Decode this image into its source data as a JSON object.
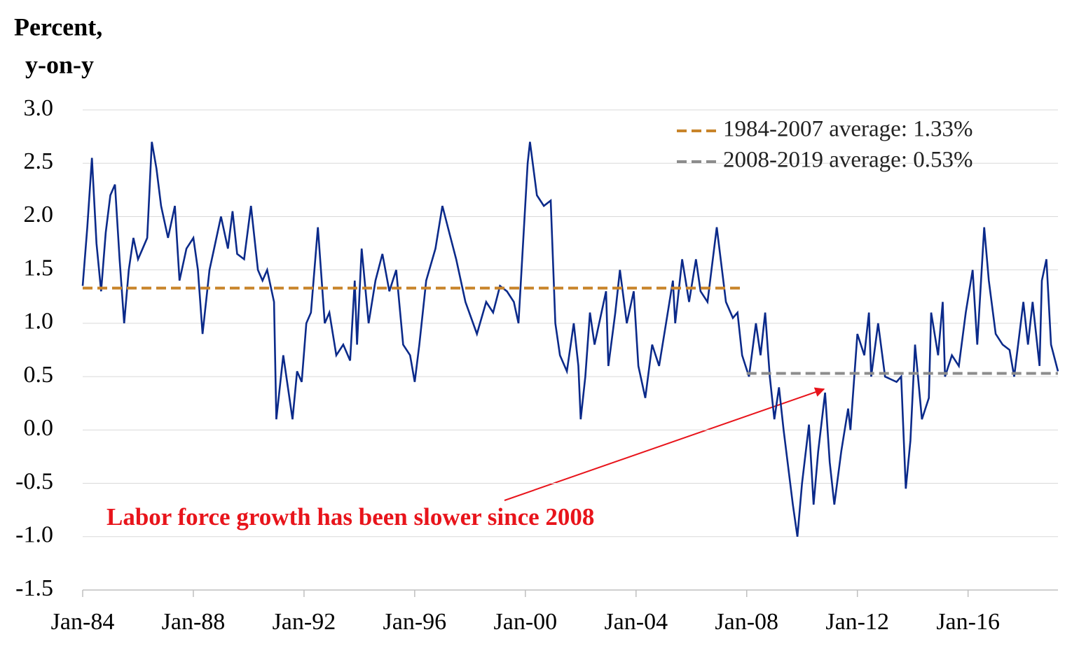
{
  "chart_data": {
    "type": "line",
    "y_label": [
      "Percent,",
      "y-on-y"
    ],
    "annotation": "Labor force growth has been slower since 2008",
    "x": [
      "Jan-84",
      "Mar-84",
      "May-84",
      "Jul-84",
      "Sep-84",
      "Nov-84",
      "Jan-85",
      "Mar-85",
      "May-85",
      "Jul-85",
      "Sep-85",
      "Nov-85",
      "Jan-86",
      "Mar-86",
      "May-86",
      "Jul-86",
      "Sep-86",
      "Nov-86",
      "Feb-87",
      "May-87",
      "Jul-87",
      "Oct-87",
      "Jan-88",
      "Mar-88",
      "May-88",
      "Aug-88",
      "Oct-88",
      "Jan-89",
      "Apr-89",
      "Jun-89",
      "Aug-89",
      "Nov-89",
      "Feb-90",
      "May-90",
      "Jul-90",
      "Sep-90",
      "Dec-90",
      "Jan-91",
      "Apr-91",
      "Aug-91",
      "Oct-91",
      "Dec-91",
      "Feb-92",
      "Apr-92",
      "Jul-92",
      "Oct-92",
      "Dec-92",
      "Mar-93",
      "Jun-93",
      "Sep-93",
      "Nov-93",
      "Dec-93",
      "Feb-94",
      "May-94",
      "Aug-94",
      "Nov-94",
      "Feb-95",
      "May-95",
      "Aug-95",
      "Nov-95",
      "Jan-96",
      "Mar-96",
      "Jun-96",
      "Oct-96",
      "Jan-97",
      "Apr-97",
      "Jul-97",
      "Nov-97",
      "Apr-98",
      "Aug-98",
      "Nov-98",
      "Feb-99",
      "May-99",
      "Aug-99",
      "Oct-99",
      "Feb-00",
      "Mar-00",
      "Jun-00",
      "Sep-00",
      "Dec-00",
      "Feb-01",
      "Apr-01",
      "Jul-01",
      "Oct-01",
      "Dec-01",
      "Jan-02",
      "Mar-02",
      "May-02",
      "Jul-02",
      "Dec-02",
      "Jan-03",
      "Apr-03",
      "Jun-03",
      "Sep-03",
      "Dec-03",
      "Feb-04",
      "May-04",
      "Aug-04",
      "Nov-04",
      "Feb-05",
      "May-05",
      "Jun-05",
      "Sep-05",
      "Dec-05",
      "Mar-06",
      "May-06",
      "Aug-06",
      "Dec-06",
      "Apr-07",
      "Jul-07",
      "Sep-07",
      "Nov-07",
      "Feb-08",
      "May-08",
      "Jul-08",
      "Sep-08",
      "Nov-08",
      "Jan-09",
      "Mar-09",
      "May-09",
      "Sep-09",
      "Nov-09",
      "Jan-10",
      "Apr-10",
      "Jun-10",
      "Aug-10",
      "Nov-10",
      "Jan-11",
      "Mar-11",
      "Jun-11",
      "Sep-11",
      "Oct-11",
      "Jan-12",
      "Apr-12",
      "Jun-12",
      "Jul-12",
      "Oct-12",
      "Jan-13",
      "Jun-13",
      "Aug-13",
      "Oct-13",
      "Dec-13",
      "Feb-14",
      "May-14",
      "Aug-14",
      "Sep-14",
      "Dec-14",
      "Feb-15",
      "Mar-15",
      "Jun-15",
      "Sep-15",
      "Dec-15",
      "Mar-16",
      "May-16",
      "Aug-16",
      "Oct-16",
      "Jan-17",
      "Apr-17",
      "Jul-17",
      "Sep-17",
      "Jan-18",
      "Mar-18",
      "May-18",
      "Aug-18",
      "Sep-18",
      "Nov-18",
      "Jan-19",
      "Apr-19"
    ],
    "series": [
      {
        "color": "#0b2a8a",
        "values": [
          1.35,
          1.9,
          2.55,
          1.75,
          1.3,
          1.85,
          2.2,
          2.3,
          1.6,
          1.0,
          1.5,
          1.8,
          1.6,
          1.7,
          1.8,
          2.7,
          2.45,
          2.1,
          1.8,
          2.1,
          1.4,
          1.7,
          1.8,
          1.5,
          0.9,
          1.5,
          1.7,
          2.0,
          1.7,
          2.05,
          1.65,
          1.6,
          2.1,
          1.5,
          1.4,
          1.5,
          1.2,
          0.1,
          0.7,
          0.1,
          0.55,
          0.45,
          1.0,
          1.1,
          1.9,
          1.0,
          1.1,
          0.7,
          0.8,
          0.65,
          1.4,
          0.8,
          1.7,
          1.0,
          1.4,
          1.65,
          1.3,
          1.5,
          0.8,
          0.7,
          0.45,
          0.8,
          1.4,
          1.7,
          2.1,
          1.85,
          1.6,
          1.2,
          0.9,
          1.2,
          1.1,
          1.35,
          1.3,
          1.2,
          1.0,
          2.5,
          2.7,
          2.2,
          2.1,
          2.15,
          1.0,
          0.7,
          0.55,
          1.0,
          0.6,
          0.1,
          0.5,
          1.1,
          0.8,
          1.3,
          0.6,
          1.1,
          1.5,
          1.0,
          1.3,
          0.6,
          0.3,
          0.8,
          0.6,
          1.0,
          1.4,
          1.0,
          1.6,
          1.2,
          1.6,
          1.3,
          1.2,
          1.9,
          1.2,
          1.05,
          1.1,
          0.7,
          0.5,
          1.0,
          0.7,
          1.1,
          0.5,
          0.1,
          0.4,
          0.0,
          -0.7,
          -1.0,
          -0.5,
          0.05,
          -0.7,
          -0.2,
          0.35,
          -0.3,
          -0.7,
          -0.2,
          0.2,
          0.0,
          0.9,
          0.7,
          1.1,
          0.5,
          1.0,
          0.5,
          0.45,
          0.5,
          -0.55,
          -0.1,
          0.8,
          0.1,
          0.3,
          1.1,
          0.7,
          1.2,
          0.5,
          0.7,
          0.6,
          1.1,
          1.5,
          0.8,
          1.9,
          1.4,
          0.9,
          0.8,
          0.75,
          0.5,
          1.2,
          0.8,
          1.2,
          0.6,
          1.4,
          1.6,
          0.8,
          0.55
        ]
      },
      {
        "name": "1984-2007 average: 1.33%",
        "color": "#c8842a",
        "dashed": true,
        "x": [
          "Jan-84",
          "Dec-07"
        ],
        "values": [
          1.33,
          1.33
        ]
      },
      {
        "name": "2008-2019 average: 0.53%",
        "color": "#8c8c8c",
        "dashed": true,
        "x": [
          "Jan-08",
          "Apr-19"
        ],
        "values": [
          0.53,
          0.53
        ]
      }
    ],
    "xlim": [
      "Jan-84",
      "Apr-19"
    ],
    "xticks": [
      "Jan-84",
      "Jan-88",
      "Jan-92",
      "Jan-96",
      "Jan-00",
      "Jan-04",
      "Jan-08",
      "Jan-12",
      "Jan-16"
    ],
    "ylim": [
      -1.5,
      3
    ],
    "yticks": [
      -1.5,
      {
        "value": -1,
        "label": "-1.0"
      },
      -0.5,
      {
        "value": 0,
        "label": "0.0"
      },
      0.5,
      {
        "value": 1,
        "label": "1.0"
      },
      1.5,
      {
        "value": 2,
        "label": "2.0"
      },
      2.5,
      {
        "value": 3,
        "label": "3.0"
      }
    ],
    "grid": true
  }
}
